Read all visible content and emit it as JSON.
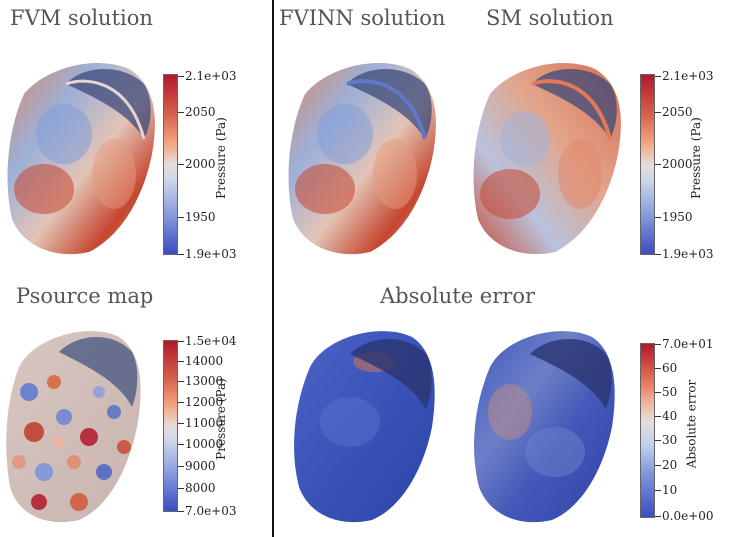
{
  "panels": {
    "fvm_title": "FVM solution",
    "fvinn_title": "FVINN solution",
    "sm_title": "SM solution",
    "psource_title": "Psource map",
    "error_title": "Absolute error"
  },
  "colorbars": {
    "pressure_left": {
      "label": "Pressure (Pa)",
      "ticks": [
        "2.1e+03",
        "2050",
        "2000",
        "1950",
        "1.9e+03"
      ]
    },
    "pressure_right": {
      "label": "Pressure (Pa)",
      "ticks": [
        "2.1e+03",
        "2050",
        "2000",
        "1950",
        "1.9e+03"
      ]
    },
    "psource": {
      "label": "Pressure (Pa)",
      "ticks": [
        "1.5e+04",
        "14000",
        "13000",
        "12000",
        "11000",
        "10000",
        "9000",
        "8000",
        "7.0e+03"
      ]
    },
    "error": {
      "label": "Absolute error",
      "ticks": [
        "7.0e+01",
        "60",
        "50",
        "40",
        "30",
        "20",
        "10",
        "0.0e+00"
      ]
    }
  },
  "colors": {
    "high": "#b2182b",
    "mid": "#e8dcd8",
    "low": "#3b4cc0"
  }
}
